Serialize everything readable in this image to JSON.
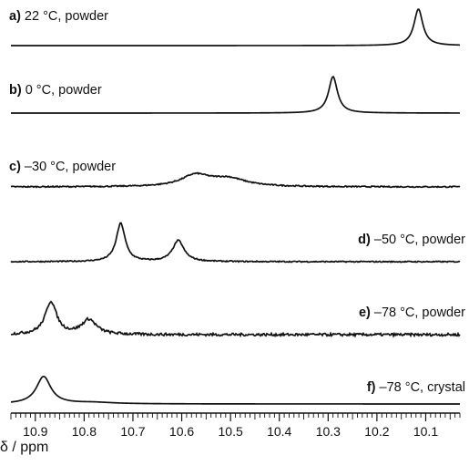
{
  "chart_data": {
    "type": "line",
    "xlabel": "δ / ppm",
    "x_reversed": true,
    "xlim": [
      10.95,
      10.03
    ],
    "x_ticks": [
      "10.9",
      "10.8",
      "10.7",
      "10.6",
      "10.5",
      "10.4",
      "10.3",
      "10.2",
      "10.1"
    ],
    "series": [
      {
        "id": "a",
        "letter": "a)",
        "label": "22 °C, powder",
        "label_align": "left",
        "noise": 0,
        "peaks": [
          {
            "x": 10.115,
            "h": 1.0,
            "w": 0.011
          }
        ]
      },
      {
        "id": "b",
        "letter": "b)",
        "label": "0 °C, powder",
        "label_align": "left",
        "noise": 0,
        "peaks": [
          {
            "x": 10.29,
            "h": 1.0,
            "w": 0.011
          }
        ]
      },
      {
        "id": "c",
        "letter": "c)",
        "label": "–30 °C, powder",
        "label_align": "left",
        "noise": 0.06,
        "peaks": [
          {
            "x": 10.572,
            "h": 0.55,
            "w": 0.035
          },
          {
            "x": 10.505,
            "h": 0.4,
            "w": 0.045
          }
        ]
      },
      {
        "id": "d",
        "letter": "d)",
        "label": "–50 °C, powder",
        "label_align": "right",
        "noise": 0.03,
        "peaks": [
          {
            "x": 10.725,
            "h": 1.0,
            "w": 0.011
          },
          {
            "x": 10.607,
            "h": 0.55,
            "w": 0.014
          }
        ]
      },
      {
        "id": "e",
        "letter": "e)",
        "label": "–78 °C, powder",
        "label_align": "right",
        "noise": 0.08,
        "peaks": [
          {
            "x": 10.868,
            "h": 1.0,
            "w": 0.014
          },
          {
            "x": 10.79,
            "h": 0.45,
            "w": 0.018
          }
        ]
      },
      {
        "id": "f",
        "letter": "f)",
        "label": "–78 °C, crystal",
        "label_align": "right",
        "noise": 0,
        "peaks": [
          {
            "x": 10.883,
            "h": 1.0,
            "w": 0.018
          },
          {
            "x": 10.78,
            "h": 0.05,
            "w": 0.05
          }
        ]
      }
    ]
  }
}
